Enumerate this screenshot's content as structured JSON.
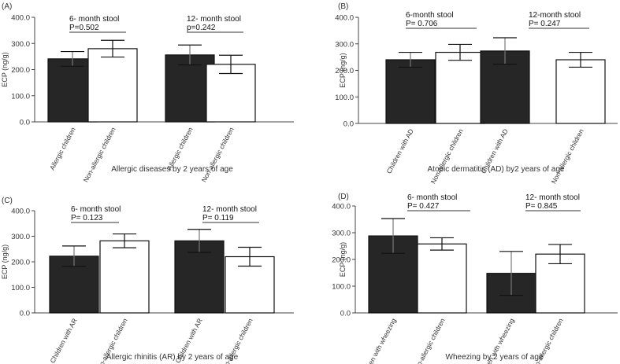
{
  "chart_data": [
    {
      "type": "bar",
      "panel_label": "(A)",
      "xlabel": "Allergic diseases by 2 years of age",
      "ylabel": "ECP (ng/g)",
      "ylim": [
        0,
        400
      ],
      "yticks": [
        "0.0",
        "100.0",
        "200.0",
        "300.0",
        "400.0"
      ],
      "categories": [
        "Allergic children",
        "Non-allergic children",
        "Allergic children",
        "Non-allergic children"
      ],
      "values": [
        241,
        280,
        256,
        220
      ],
      "errors": [
        28,
        32,
        38,
        35
      ],
      "fill": [
        "dark",
        "light",
        "dark",
        "light"
      ],
      "annotations": [
        {
          "title": "6- month stool",
          "pvalue": "P=0.502"
        },
        {
          "title": "12- month stool",
          "pvalue": "p=0.242"
        }
      ]
    },
    {
      "type": "bar",
      "panel_label": "(B)",
      "xlabel": "Atopic dermatitis (AD) by2 years of age",
      "ylabel": "ECP (ng/g)",
      "ylim": [
        0,
        400
      ],
      "yticks": [
        "0.0",
        "100.0",
        "200.0",
        "300.0",
        "400.0"
      ],
      "categories": [
        "Children with AD",
        "Non-allergic children",
        "Children with AD",
        "Non-allergic children"
      ],
      "values": [
        240,
        268,
        273,
        240
      ],
      "errors": [
        28,
        30,
        50,
        28
      ],
      "fill": [
        "dark",
        "light",
        "dark",
        "light"
      ],
      "annotations": [
        {
          "title": "6-month stool",
          "pvalue": "P= 0.706"
        },
        {
          "title": "12-month stool",
          "pvalue": "P= 0.247"
        }
      ]
    },
    {
      "type": "bar",
      "panel_label": "(C)",
      "xlabel": "Allergic rhinitis (AR) by 2 years of age",
      "ylabel": "ECP (ng/g)",
      "ylim": [
        0,
        400
      ],
      "yticks": [
        "0.0",
        "100.0",
        "200.0",
        "300.0",
        "400.0"
      ],
      "categories": [
        "Children with AR",
        "Non-allergic children",
        "Children with AR",
        "Non-allergic children"
      ],
      "values": [
        222,
        282,
        282,
        220
      ],
      "errors": [
        40,
        27,
        45,
        37
      ],
      "fill": [
        "dark",
        "light",
        "dark",
        "light"
      ],
      "annotations": [
        {
          "title": "6- month stool",
          "pvalue": "P= 0.123"
        },
        {
          "title": "12- month stool",
          "pvalue": "P= 0.119"
        }
      ]
    },
    {
      "type": "bar",
      "panel_label": "(D)",
      "xlabel": "Wheezing by 2 years of age",
      "ylabel": "ECP (ng/g)",
      "ylim": [
        0,
        400
      ],
      "yticks": [
        "0.0",
        "100.0",
        "200.0",
        "300.0",
        "400.0"
      ],
      "categories": [
        "Children with wheezing",
        "Non-allergic children",
        "Children with wheezing",
        "Non-allergic children"
      ],
      "values": [
        288,
        258,
        148,
        220
      ],
      "errors": [
        65,
        23,
        82,
        36
      ],
      "fill": [
        "dark",
        "light",
        "dark",
        "light"
      ],
      "annotations": [
        {
          "title": "6- month stool",
          "pvalue": "P= 0.427"
        },
        {
          "title": "12- month stool",
          "pvalue": "P= 0.845"
        }
      ]
    }
  ],
  "colors": {
    "dark_bar": "#262626",
    "light_bar": "#ffffff",
    "axis": "#444444",
    "text": "#333333"
  }
}
